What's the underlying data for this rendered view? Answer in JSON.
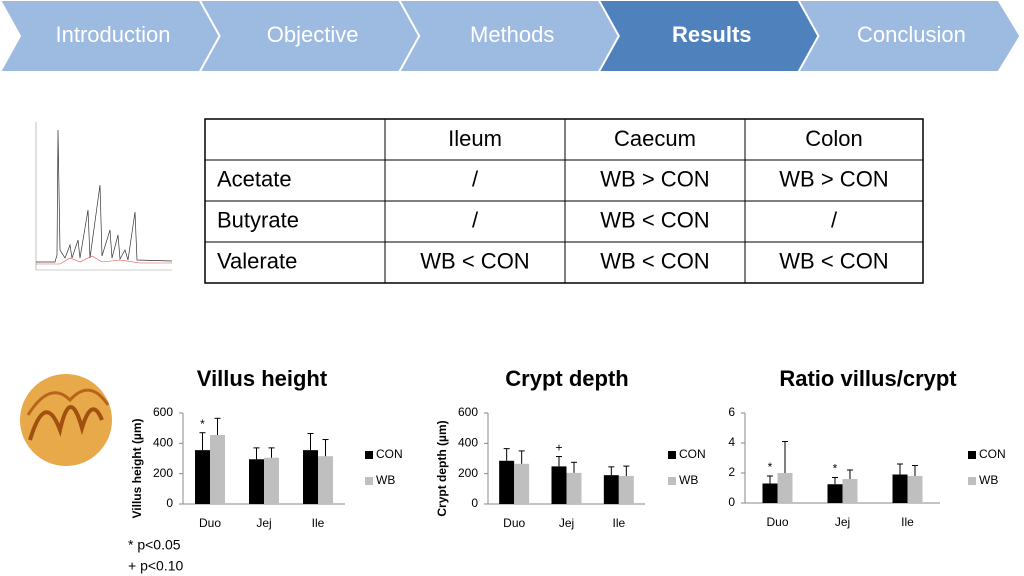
{
  "nav": {
    "items": [
      "Introduction",
      "Objective",
      "Methods",
      "Results",
      "Conclusion"
    ],
    "active": 3
  },
  "table": {
    "columns": [
      "Ileum",
      "Caecum",
      "Colon"
    ],
    "rows": [
      {
        "label": "Acetate",
        "cells": [
          "/",
          "WB > CON",
          "WB > CON"
        ]
      },
      {
        "label": "Butyrate",
        "cells": [
          "/",
          "WB < CON",
          "/"
        ]
      },
      {
        "label": "Valerate",
        "cells": [
          "WB < CON",
          "WB < CON",
          "WB < CON"
        ]
      }
    ]
  },
  "chart_data": [
    {
      "type": "bar",
      "title": "Villus height",
      "y_label": "Villus height (µm)",
      "categories": [
        "Duo",
        "Jej",
        "Ile"
      ],
      "series": [
        {
          "name": "CON",
          "color": "#000000",
          "values": [
            355,
            295,
            355
          ],
          "errors": [
            115,
            75,
            110
          ],
          "annotations": [
            "*",
            null,
            null
          ]
        },
        {
          "name": "WB",
          "color": "#bfbfbf",
          "values": [
            455,
            305,
            315
          ],
          "errors": [
            110,
            65,
            110
          ],
          "annotations": [
            null,
            null,
            null
          ]
        }
      ],
      "ylim": [
        0,
        600
      ],
      "yticks": [
        0,
        200,
        400,
        600
      ]
    },
    {
      "type": "bar",
      "title": "Crypt depth",
      "y_label": "Crypt depth (µm)",
      "categories": [
        "Duo",
        "Jej",
        "Ile"
      ],
      "series": [
        {
          "name": "CON",
          "color": "#000000",
          "values": [
            285,
            248,
            190
          ],
          "errors": [
            80,
            65,
            55
          ],
          "annotations": [
            null,
            "+",
            null
          ]
        },
        {
          "name": "WB",
          "color": "#bfbfbf",
          "values": [
            265,
            205,
            185
          ],
          "errors": [
            85,
            70,
            65
          ],
          "annotations": [
            null,
            null,
            null
          ]
        }
      ],
      "ylim": [
        0,
        600
      ],
      "yticks": [
        0,
        200,
        400,
        600
      ]
    },
    {
      "type": "bar",
      "title": "Ratio villus/crypt",
      "categories": [
        "Duo",
        "Jej",
        "Ile"
      ],
      "series": [
        {
          "name": "CON",
          "color": "#000000",
          "values": [
            1.3,
            1.25,
            1.9
          ],
          "errors": [
            0.5,
            0.45,
            0.7
          ],
          "annotations": [
            "*",
            "*",
            null
          ]
        },
        {
          "name": "WB",
          "color": "#bfbfbf",
          "values": [
            2.0,
            1.6,
            1.8
          ],
          "errors": [
            2.1,
            0.6,
            0.7
          ],
          "annotations": [
            null,
            null,
            null
          ]
        }
      ],
      "ylim": [
        0,
        6
      ],
      "yticks": [
        0,
        2,
        4,
        6
      ]
    }
  ],
  "footnotes": [
    "* p<0.05",
    "+ p<0.10"
  ]
}
